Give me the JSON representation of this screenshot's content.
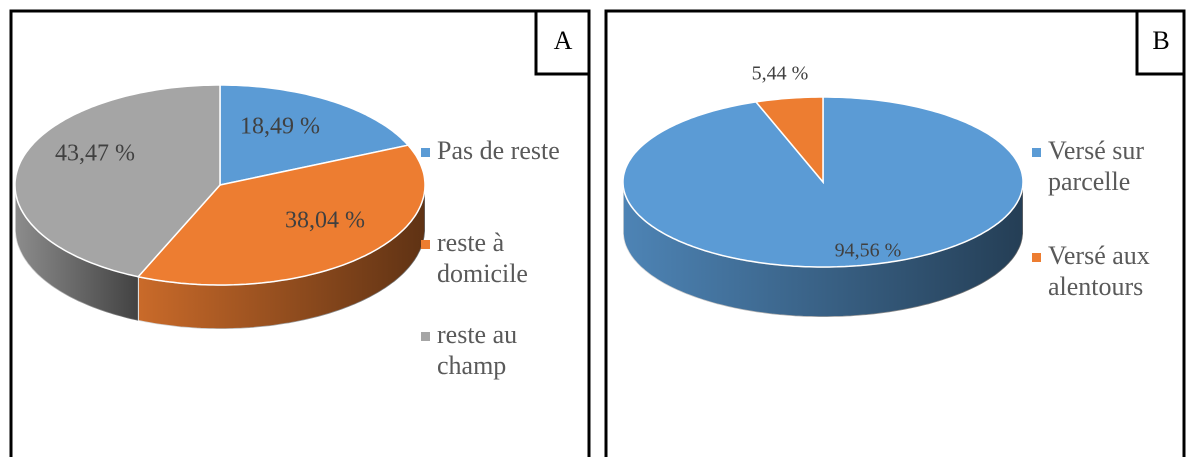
{
  "chart_data": [
    {
      "type": "pie3d",
      "label": "A",
      "categories": [
        "Pas de reste",
        "reste à domicile",
        "reste au champ"
      ],
      "values": [
        18.49,
        38.04,
        43.47
      ],
      "value_labels": [
        "18,49 %",
        "38,04 %",
        "43,47 %"
      ],
      "colors": [
        "#5b9bd5",
        "#ed7d31",
        "#a5a5a5"
      ]
    },
    {
      "type": "pie3d",
      "label": "B",
      "categories": [
        "Versé sur parcelle",
        "Versé aux alentours"
      ],
      "values": [
        94.56,
        5.44
      ],
      "value_labels": [
        "94,56 %",
        "5,44 %"
      ],
      "colors": [
        "#5b9bd5",
        "#ed7d31"
      ]
    }
  ]
}
